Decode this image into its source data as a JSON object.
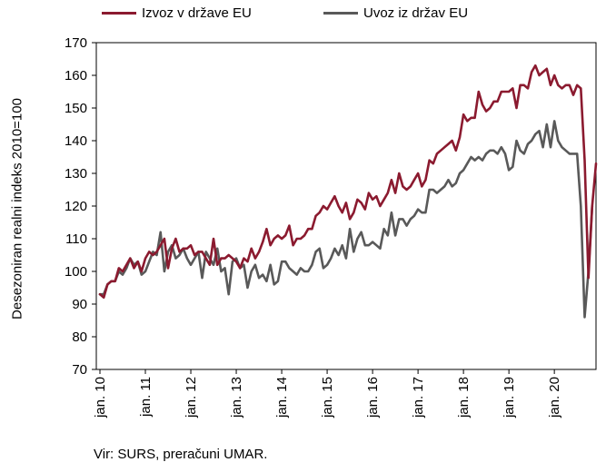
{
  "chart_data": {
    "type": "line",
    "ylabel": "Desezoniran realni indeks 2010=100",
    "ylim": [
      70,
      170
    ],
    "yticks": [
      70,
      80,
      90,
      100,
      110,
      120,
      130,
      140,
      150,
      160,
      170
    ],
    "xticks": [
      "jan. 10",
      "jan. 11",
      "jan. 12",
      "jan. 13",
      "jan. 14",
      "jan. 15",
      "jan. 16",
      "jan. 17",
      "jan. 18",
      "jan. 19",
      "jan. 20"
    ],
    "x_start": "jan. 10",
    "frequency": "monthly",
    "grid": false,
    "legend_position": "top",
    "series": [
      {
        "name": "Izvoz v države EU",
        "color": "#8B1A2F",
        "values": [
          93,
          92,
          96,
          97,
          97,
          101,
          100,
          102,
          104,
          101,
          103,
          100,
          104,
          106,
          105,
          106,
          108,
          110,
          101,
          107,
          110,
          106,
          107,
          107,
          108,
          105,
          106,
          106,
          104,
          102,
          110,
          102,
          104,
          104,
          105,
          104,
          103,
          101,
          104,
          103,
          107,
          104,
          106,
          109,
          113,
          108,
          110,
          111,
          110,
          111,
          114,
          108,
          110,
          110,
          111,
          113,
          113,
          117,
          118,
          120,
          119,
          121,
          123,
          120,
          118,
          121,
          116,
          118,
          122,
          121,
          119,
          124,
          122,
          123,
          120,
          122,
          124,
          128,
          124,
          130,
          126,
          125,
          126,
          128,
          130,
          126,
          128,
          134,
          133,
          136,
          137,
          138,
          139,
          140,
          137,
          141,
          148,
          146,
          147,
          147,
          155,
          151,
          149,
          150,
          152,
          152,
          155,
          155,
          155,
          156,
          150,
          157,
          157,
          156,
          161,
          163,
          160,
          161,
          162,
          157,
          160,
          157,
          156,
          157,
          157,
          154,
          157,
          156,
          134,
          98,
          120,
          133
        ]
      },
      {
        "name": "Uvoz iz držav EU",
        "color": "#595959",
        "values": [
          93,
          93,
          96,
          97,
          97,
          100,
          99,
          101,
          104,
          102,
          103,
          99,
          100,
          103,
          106,
          105,
          112,
          100,
          106,
          108,
          104,
          105,
          107,
          104,
          102,
          104,
          106,
          98,
          106,
          104,
          102,
          107,
          100,
          101,
          93,
          103,
          104,
          101,
          102,
          95,
          100,
          102,
          98,
          99,
          97,
          102,
          96,
          97,
          103,
          103,
          101,
          100,
          99,
          101,
          100,
          100,
          102,
          106,
          107,
          101,
          102,
          104,
          107,
          105,
          108,
          104,
          113,
          106,
          110,
          112,
          108,
          108,
          109,
          108,
          107,
          113,
          111,
          118,
          111,
          116,
          116,
          114,
          116,
          117,
          119,
          118,
          118,
          125,
          125,
          124,
          125,
          126,
          128,
          126,
          127,
          130,
          131,
          133,
          135,
          134,
          135,
          134,
          136,
          137,
          137,
          136,
          138,
          136,
          131,
          132,
          140,
          137,
          136,
          139,
          140,
          142,
          143,
          138,
          145,
          138,
          146,
          140,
          138,
          137,
          136,
          136,
          136,
          120,
          86,
          100,
          120
        ]
      }
    ]
  },
  "source": "Vir: SURS, preračuni UMAR."
}
